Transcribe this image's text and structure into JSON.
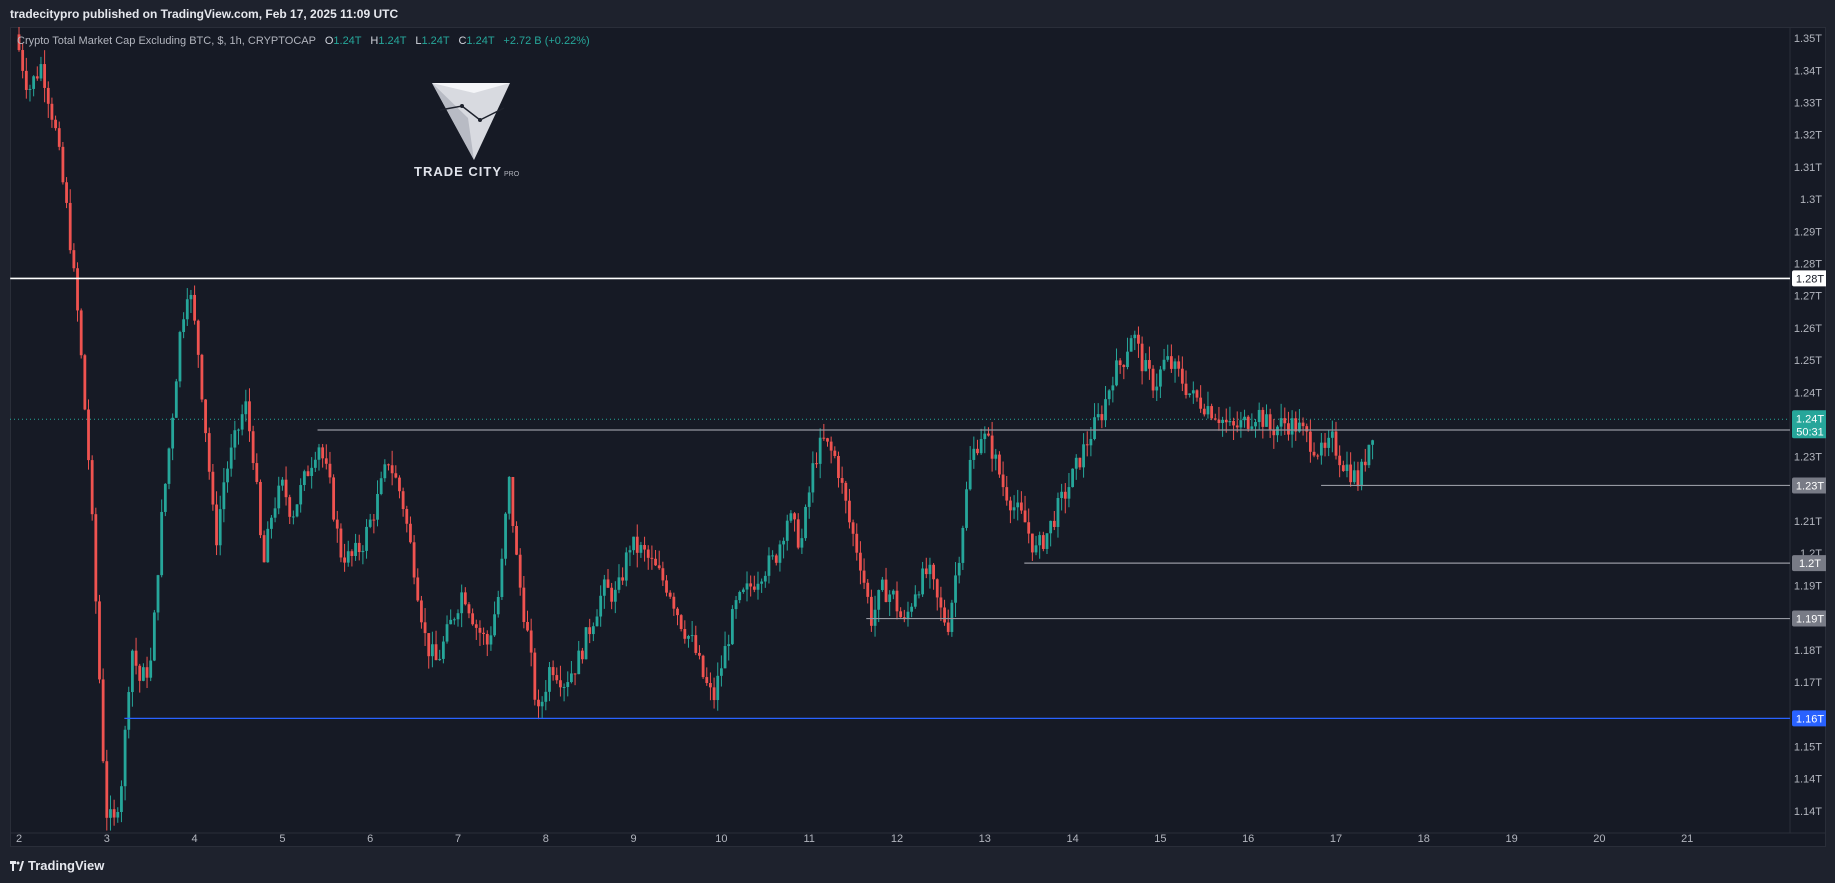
{
  "header": {
    "published": "tradecitypro published on TradingView.com, Feb 17, 2025 11:09 UTC"
  },
  "legend": {
    "title": "Crypto Total Market Cap Excluding BTC, $, 1h, CRYPTOCAP",
    "open_label": "O",
    "open": "1.24T",
    "high_label": "H",
    "high": "1.24T",
    "low_label": "L",
    "low": "1.24T",
    "close_label": "C",
    "close": "1.24T",
    "change": "+2.72 B (+0.22%)"
  },
  "logo": {
    "name": "TRADE CITY",
    "suffix": "PRO"
  },
  "footer": {
    "brand": "TradingView"
  },
  "colors": {
    "up": "#26a69a",
    "down": "#ef5350",
    "background": "#161a25",
    "level_white": "#ffffff",
    "level_gray": "#9598a1",
    "level_blue": "#2962ff"
  },
  "chart_data": {
    "type": "candlestick",
    "title": "Crypto Total Market Cap Excluding BTC, $, 1h, CRYPTOCAP",
    "x_ticks": [
      "2",
      "3",
      "4",
      "5",
      "6",
      "7",
      "8",
      "9",
      "10",
      "11",
      "12",
      "13",
      "14",
      "15",
      "16",
      "17",
      "18",
      "19",
      "20",
      "21"
    ],
    "y_ticks": [
      "1.14T",
      "1.14T",
      "1.15T",
      "1.16T",
      "1.17T",
      "1.18T",
      "1.18T",
      "1.19T",
      "1.2T",
      "1.21T",
      "1.22T",
      "1.23T",
      "1.23T",
      "1.24T",
      "1.25T",
      "1.26T",
      "1.27T",
      "1.28T",
      "1.29T",
      "1.3T",
      "1.31T",
      "1.32T",
      "1.33T",
      "1.34T",
      "1.35T"
    ],
    "y_range": [
      1.134,
      1.352
    ],
    "price_path_days": [
      [
        2.0,
        1.35
      ],
      [
        2.15,
        1.335
      ],
      [
        2.3,
        1.342
      ],
      [
        2.45,
        1.325
      ],
      [
        2.6,
        1.3
      ],
      [
        2.72,
        1.272
      ],
      [
        2.85,
        1.23
      ],
      [
        2.95,
        1.18
      ],
      [
        3.03,
        1.14
      ],
      [
        3.12,
        1.136
      ],
      [
        3.22,
        1.15
      ],
      [
        3.32,
        1.185
      ],
      [
        3.42,
        1.175
      ],
      [
        3.55,
        1.18
      ],
      [
        3.65,
        1.215
      ],
      [
        3.78,
        1.245
      ],
      [
        3.88,
        1.27
      ],
      [
        3.97,
        1.283
      ],
      [
        4.08,
        1.265
      ],
      [
        4.18,
        1.24
      ],
      [
        4.28,
        1.212
      ],
      [
        4.38,
        1.23
      ],
      [
        4.5,
        1.24
      ],
      [
        4.62,
        1.25
      ],
      [
        4.72,
        1.235
      ],
      [
        4.82,
        1.205
      ],
      [
        4.93,
        1.222
      ],
      [
        5.05,
        1.228
      ],
      [
        5.15,
        1.22
      ],
      [
        5.3,
        1.23
      ],
      [
        5.45,
        1.24
      ],
      [
        5.58,
        1.228
      ],
      [
        5.7,
        1.21
      ],
      [
        5.82,
        1.208
      ],
      [
        5.95,
        1.212
      ],
      [
        6.1,
        1.222
      ],
      [
        6.25,
        1.235
      ],
      [
        6.4,
        1.225
      ],
      [
        6.55,
        1.205
      ],
      [
        6.68,
        1.185
      ],
      [
        6.8,
        1.18
      ],
      [
        6.95,
        1.19
      ],
      [
        7.1,
        1.2
      ],
      [
        7.25,
        1.19
      ],
      [
        7.38,
        1.185
      ],
      [
        7.52,
        1.2
      ],
      [
        7.62,
        1.23
      ],
      [
        7.72,
        1.205
      ],
      [
        7.85,
        1.185
      ],
      [
        7.95,
        1.165
      ],
      [
        8.1,
        1.18
      ],
      [
        8.25,
        1.175
      ],
      [
        8.4,
        1.18
      ],
      [
        8.55,
        1.19
      ],
      [
        8.7,
        1.2
      ],
      [
        8.85,
        1.198
      ],
      [
        9.0,
        1.212
      ],
      [
        9.15,
        1.21
      ],
      [
        9.3,
        1.205
      ],
      [
        9.45,
        1.2
      ],
      [
        9.6,
        1.19
      ],
      [
        9.72,
        1.185
      ],
      [
        9.85,
        1.175
      ],
      [
        9.95,
        1.17
      ],
      [
        10.05,
        1.18
      ],
      [
        10.2,
        1.195
      ],
      [
        10.35,
        1.2
      ],
      [
        10.5,
        1.205
      ],
      [
        10.65,
        1.208
      ],
      [
        10.8,
        1.22
      ],
      [
        10.95,
        1.212
      ],
      [
        11.1,
        1.235
      ],
      [
        11.2,
        1.24
      ],
      [
        11.35,
        1.235
      ],
      [
        11.5,
        1.218
      ],
      [
        11.62,
        1.208
      ],
      [
        11.75,
        1.192
      ],
      [
        11.88,
        1.2
      ],
      [
        12.0,
        1.198
      ],
      [
        12.12,
        1.19
      ],
      [
        12.25,
        1.2
      ],
      [
        12.4,
        1.205
      ],
      [
        12.52,
        1.195
      ],
      [
        12.62,
        1.19
      ],
      [
        12.75,
        1.21
      ],
      [
        12.88,
        1.235
      ],
      [
        13.0,
        1.242
      ],
      [
        13.12,
        1.238
      ],
      [
        13.25,
        1.228
      ],
      [
        13.38,
        1.222
      ],
      [
        13.5,
        1.218
      ],
      [
        13.62,
        1.21
      ],
      [
        13.75,
        1.215
      ],
      [
        13.88,
        1.222
      ],
      [
        14.0,
        1.228
      ],
      [
        14.12,
        1.235
      ],
      [
        14.25,
        1.242
      ],
      [
        14.38,
        1.248
      ],
      [
        14.5,
        1.258
      ],
      [
        14.62,
        1.262
      ],
      [
        14.72,
        1.27
      ],
      [
        14.85,
        1.26
      ],
      [
        14.98,
        1.255
      ],
      [
        15.1,
        1.262
      ],
      [
        15.25,
        1.258
      ],
      [
        15.4,
        1.252
      ],
      [
        15.55,
        1.25
      ],
      [
        15.7,
        1.247
      ],
      [
        15.85,
        1.243
      ],
      [
        16.0,
        1.245
      ],
      [
        16.15,
        1.248
      ],
      [
        16.3,
        1.243
      ],
      [
        16.45,
        1.245
      ],
      [
        16.6,
        1.244
      ],
      [
        16.75,
        1.24
      ],
      [
        16.9,
        1.236
      ],
      [
        17.0,
        1.24
      ],
      [
        17.1,
        1.235
      ],
      [
        17.2,
        1.232
      ],
      [
        17.3,
        1.229
      ],
      [
        17.38,
        1.236
      ],
      [
        17.45,
        1.243
      ]
    ],
    "levels": [
      {
        "value": 1.284,
        "label": "1.28T",
        "color": "#ffffff",
        "from_day": 1.9
      },
      {
        "value": 1.243,
        "label": "1.24T",
        "color": "#9598a1",
        "from_day": 5.4
      },
      {
        "value": 1.228,
        "label": "1.23T",
        "color": "#9598a1",
        "from_day": 16.83
      },
      {
        "value": 1.207,
        "label": "1.2T",
        "color": "#9598a1",
        "from_day": 13.45
      },
      {
        "value": 1.192,
        "label": "1.19T",
        "color": "#9598a1",
        "from_day": 11.65
      },
      {
        "value": 1.165,
        "label": "1.16T",
        "color": "#2962ff",
        "from_day": 3.2
      }
    ],
    "current_price": {
      "label": "1.24T",
      "countdown": "50:31",
      "value": 1.244
    }
  }
}
